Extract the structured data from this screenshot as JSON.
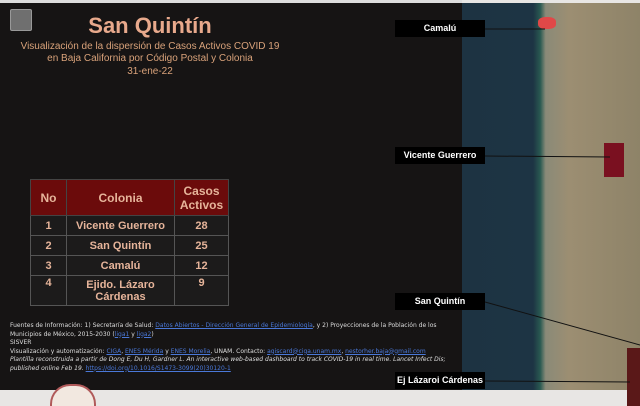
{
  "header": {
    "title": "San Quintín",
    "subtitle1": "Visualización de la dispersión de Casos Activos COVID 19",
    "subtitle2": "en Baja California por Código Postal y Colonia",
    "date": "31-ene-22"
  },
  "table": {
    "columns": [
      "No",
      "Colonia",
      "Casos Activos"
    ],
    "rows": [
      [
        "1",
        "Vicente Guerrero",
        "28"
      ],
      [
        "2",
        "San Quintín",
        "25"
      ],
      [
        "3",
        "Camalú",
        "12"
      ],
      [
        "4",
        "Ejido. Lázaro Cárdenas",
        "9"
      ]
    ]
  },
  "sources": {
    "line1_pre": "Fuentes de Información: 1) Secretaría de Salud:",
    "line1_link": "Datos Abiertos - Dirección General de Epidemiología",
    "line1_mid": ", y 2) Proyecciones de la Población de los Municipios de México, 2015-2030 (",
    "link_a": "liga1",
    "y": " y ",
    "link_b": "liga2",
    "line1_end": ")",
    "sisver": "SISVER",
    "line2_pre": "Visualización y automatización:",
    "l2a": "CIGA",
    "l2b": "ENES Mérida",
    "l2y": " y ",
    "l2c": "ENES Morelia",
    "line2_mid": ", UNAM. Contacto:",
    "email1": "agiscard@ciga.unam.mx",
    "email2": "nestorher.baja@gmail.com",
    "line3": "Plantilla reconstruida a partir de Dong E, Du H, Gardner L. An interactive web-based dashboard to track COVID-19 in real time. Lancet Infect Dis; published online Feb 19.",
    "doi": "https://doi.org/10.1016/S1473-3099(20)30120-1"
  },
  "map": {
    "labels": [
      "Camalú",
      "Vicente Guerrero",
      "San Quintín",
      "Ej Lázaroi Cárdenas"
    ],
    "zone_color": "#7a1020",
    "camalu_color": "#e04848"
  }
}
